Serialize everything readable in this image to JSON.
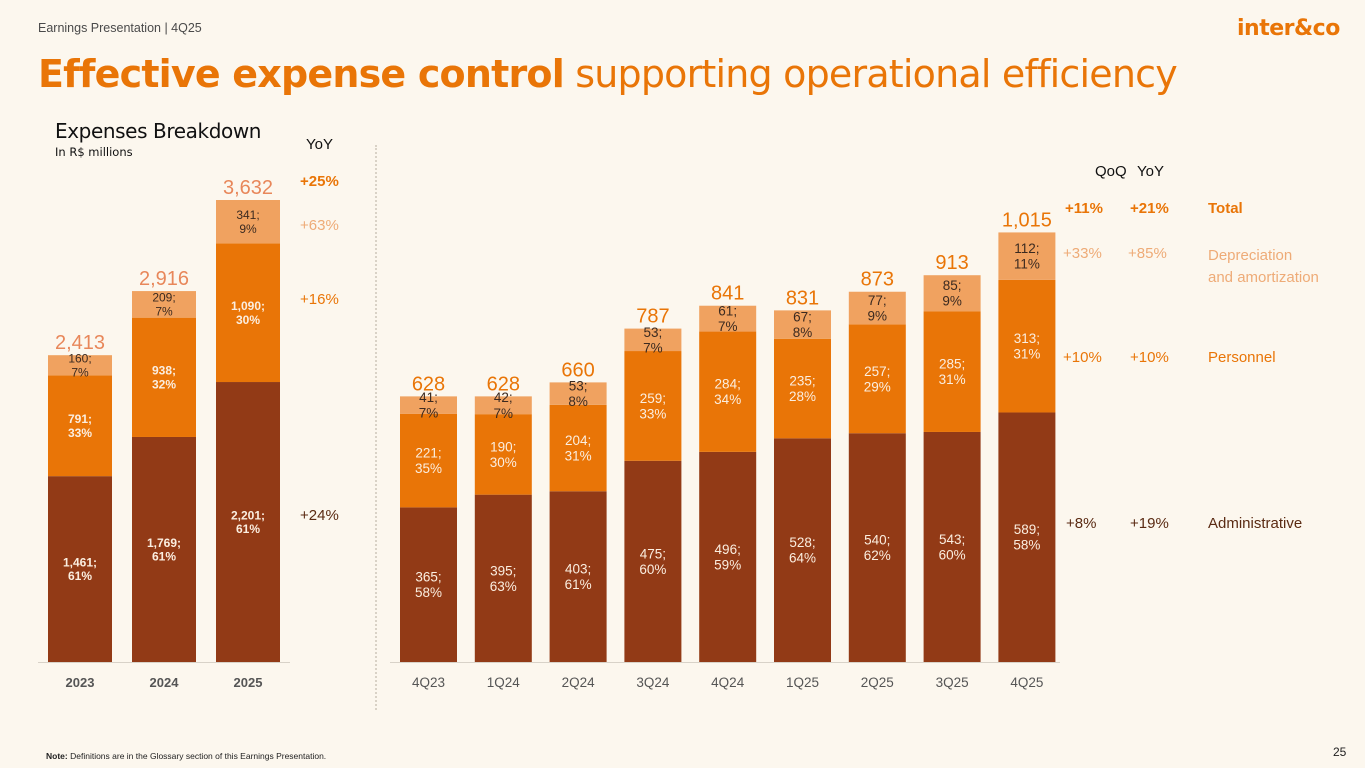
{
  "header": {
    "subtitle": "Earnings Presentation | 4Q25",
    "logo_text": "inter&co",
    "title_bold": "Effective expense control",
    "title_light": " supporting operational efficiency"
  },
  "section": {
    "title": "Expenses Breakdown",
    "subtitle": "In R$ millions"
  },
  "colors": {
    "administrative": "#923a16",
    "personnel": "#e97507",
    "depreciation": "#f0a260",
    "accent": "#e97507",
    "total_label": "#e97507",
    "annual_total_label": "#e8875a"
  },
  "annual_growth": {
    "header": "YoY",
    "total": "+25%",
    "depreciation": "+63%",
    "personnel": "+16%",
    "administrative": "+24%"
  },
  "quarterly_growth": {
    "qoq_header": "QoQ",
    "yoy_header": "YoY",
    "rows": [
      {
        "key": "total",
        "qoq": "+11%",
        "yoy": "+21%",
        "label": "Total"
      },
      {
        "key": "depreciation",
        "qoq": "+33%",
        "yoy": "+85%",
        "label": "Depreciation\nand amortization"
      },
      {
        "key": "personnel",
        "qoq": "+10%",
        "yoy": "+10%",
        "label": "Personnel"
      },
      {
        "key": "administrative",
        "qoq": "+8%",
        "yoy": "+19%",
        "label": "Administrative"
      }
    ]
  },
  "chart_data": [
    {
      "type": "bar",
      "stacked": true,
      "title": "Expenses Breakdown (annual)",
      "ylabel": "R$ millions",
      "categories": [
        "2023",
        "2024",
        "2025"
      ],
      "totals": [
        "2,413",
        "2,916",
        "3,632"
      ],
      "series": [
        {
          "name": "Administrative",
          "values": [
            1461,
            1769,
            2201
          ],
          "labels": [
            "1,461;\n61%",
            "1,769;\n61%",
            "2,201;\n61%"
          ]
        },
        {
          "name": "Personnel",
          "values": [
            791,
            938,
            1090
          ],
          "labels": [
            "791;\n33%",
            "938;\n32%",
            "1,090;\n30%"
          ]
        },
        {
          "name": "Depreciation and amortization",
          "values": [
            160,
            209,
            341
          ],
          "labels": [
            "160;\n7%",
            "209;\n7%",
            "341;\n9%"
          ]
        }
      ],
      "ylim": [
        0,
        3632
      ]
    },
    {
      "type": "bar",
      "stacked": true,
      "title": "Expenses Breakdown (quarterly)",
      "ylabel": "R$ millions",
      "categories": [
        "4Q23",
        "1Q24",
        "2Q24",
        "3Q24",
        "4Q24",
        "1Q25",
        "2Q25",
        "3Q25",
        "4Q25"
      ],
      "totals": [
        "628",
        "628",
        "660",
        "787",
        "841",
        "831",
        "873",
        "913",
        "1,015"
      ],
      "series": [
        {
          "name": "Administrative",
          "values": [
            365,
            395,
            403,
            475,
            496,
            528,
            540,
            543,
            589
          ],
          "labels": [
            "365;\n58%",
            "395;\n63%",
            "403;\n61%",
            "475;\n60%",
            "496;\n59%",
            "528;\n64%",
            "540;\n62%",
            "543;\n60%",
            "589;\n58%"
          ]
        },
        {
          "name": "Personnel",
          "values": [
            221,
            190,
            204,
            259,
            284,
            235,
            257,
            285,
            313
          ],
          "labels": [
            "221;\n35%",
            "190;\n30%",
            "204;\n31%",
            "259;\n33%",
            "284;\n34%",
            "235;\n28%",
            "257;\n29%",
            "285;\n31%",
            "313;\n31%"
          ]
        },
        {
          "name": "Depreciation and amortization",
          "values": [
            41,
            42,
            53,
            53,
            61,
            67,
            77,
            85,
            112
          ],
          "labels": [
            "41;\n7%",
            "42;\n7%",
            "53;\n8%",
            "53;\n7%",
            "61;\n7%",
            "67;\n8%",
            "77;\n9%",
            "85;\n9%",
            "112;\n11%"
          ]
        }
      ],
      "ylim": [
        0,
        1015
      ]
    }
  ],
  "footer": {
    "note_bold": "Note:",
    "note_text": " Definitions are in the Glossary section of this Earnings Presentation.",
    "page_number": "25"
  }
}
